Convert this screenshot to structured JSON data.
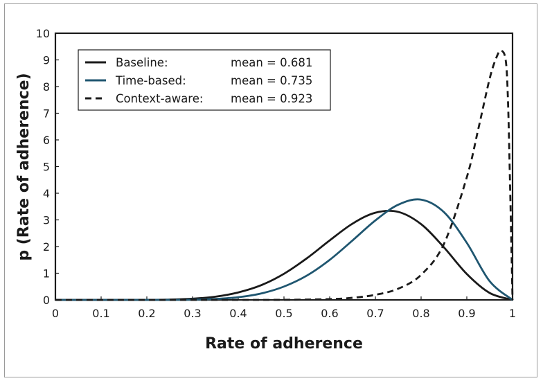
{
  "chart_data": {
    "type": "line",
    "xlabel": "Rate of adherence",
    "ylabel": "p (Rate of adherence)",
    "xlim": [
      0,
      1
    ],
    "ylim": [
      0,
      10
    ],
    "xticks": [
      "0",
      "0.1",
      "0.2",
      "0.3",
      "0.4",
      "0.5",
      "0.6",
      "0.7",
      "0.8",
      "0.9",
      "1"
    ],
    "yticks": [
      "0",
      "1",
      "2",
      "3",
      "4",
      "5",
      "6",
      "7",
      "8",
      "9",
      "10"
    ],
    "grid": false,
    "legend_position": "top-left",
    "series": [
      {
        "name": "Baseline:",
        "mean_label": "mean = 0.681",
        "color": "#1a1a1a",
        "dash": "solid",
        "x": [
          0.0,
          0.2,
          0.25,
          0.3,
          0.35,
          0.4,
          0.45,
          0.5,
          0.55,
          0.6,
          0.65,
          0.7,
          0.75,
          0.8,
          0.85,
          0.9,
          0.95,
          1.0
        ],
        "y": [
          0.0,
          0.003,
          0.013,
          0.045,
          0.12,
          0.28,
          0.55,
          0.98,
          1.56,
          2.23,
          2.86,
          3.27,
          3.3,
          2.84,
          1.97,
          0.97,
          0.26,
          0.0
        ]
      },
      {
        "name": "Time-based:",
        "mean_label": "mean = 0.735",
        "color": "#1f5670",
        "dash": "solid",
        "x": [
          0.0,
          0.25,
          0.3,
          0.35,
          0.4,
          0.45,
          0.5,
          0.55,
          0.6,
          0.65,
          0.7,
          0.75,
          0.8,
          0.85,
          0.9,
          0.95,
          1.0
        ],
        "y": [
          0.0,
          0.002,
          0.01,
          0.035,
          0.1,
          0.24,
          0.5,
          0.91,
          1.5,
          2.23,
          2.98,
          3.57,
          3.76,
          3.29,
          2.14,
          0.7,
          0.0
        ]
      },
      {
        "name": "Context-aware:",
        "mean_label": "mean = 0.923",
        "color": "#1a1a1a",
        "dash": "dashed",
        "x": [
          0.0,
          0.4,
          0.5,
          0.6,
          0.65,
          0.7,
          0.75,
          0.8,
          0.85,
          0.9,
          0.925,
          0.95,
          0.965,
          0.975,
          0.985,
          0.99,
          0.995,
          1.0
        ],
        "y": [
          0.0,
          0.0,
          0.003,
          0.03,
          0.08,
          0.19,
          0.42,
          0.94,
          2.1,
          4.6,
          6.4,
          8.3,
          9.1,
          9.35,
          9.0,
          7.5,
          4.0,
          0.0
        ]
      }
    ]
  }
}
